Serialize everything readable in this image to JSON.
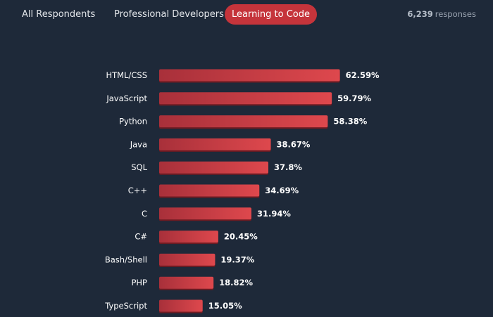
{
  "tabs": [
    {
      "label": "All Respondents",
      "active": false
    },
    {
      "label": "Professional Developers",
      "active": false
    },
    {
      "label": "Learning to Code",
      "active": true
    }
  ],
  "responses": {
    "count": "6,239",
    "label": "responses"
  },
  "colors": {
    "background": "#1e2939",
    "accent": "#c5343b",
    "bar_dark": "#a8303a",
    "bar_light": "#de484d",
    "bar_shadow": "#6e1b22",
    "label_text": "#ffffff"
  },
  "chart_data": {
    "type": "bar",
    "orientation": "horizontal",
    "categories": [
      "HTML/CSS",
      "JavaScript",
      "Python",
      "Java",
      "SQL",
      "C++",
      "C",
      "C#",
      "Bash/Shell",
      "PHP",
      "TypeScript"
    ],
    "values": [
      62.59,
      59.79,
      58.38,
      38.67,
      37.8,
      34.69,
      31.94,
      20.45,
      19.37,
      18.82,
      15.05
    ],
    "value_labels": [
      "62.59%",
      "59.79%",
      "58.38%",
      "38.67%",
      "37.8%",
      "34.69%",
      "31.94%",
      "20.45%",
      "19.37%",
      "18.82%",
      "15.05%"
    ],
    "xlim": [
      0,
      100
    ],
    "grid": false,
    "legend": "none"
  }
}
